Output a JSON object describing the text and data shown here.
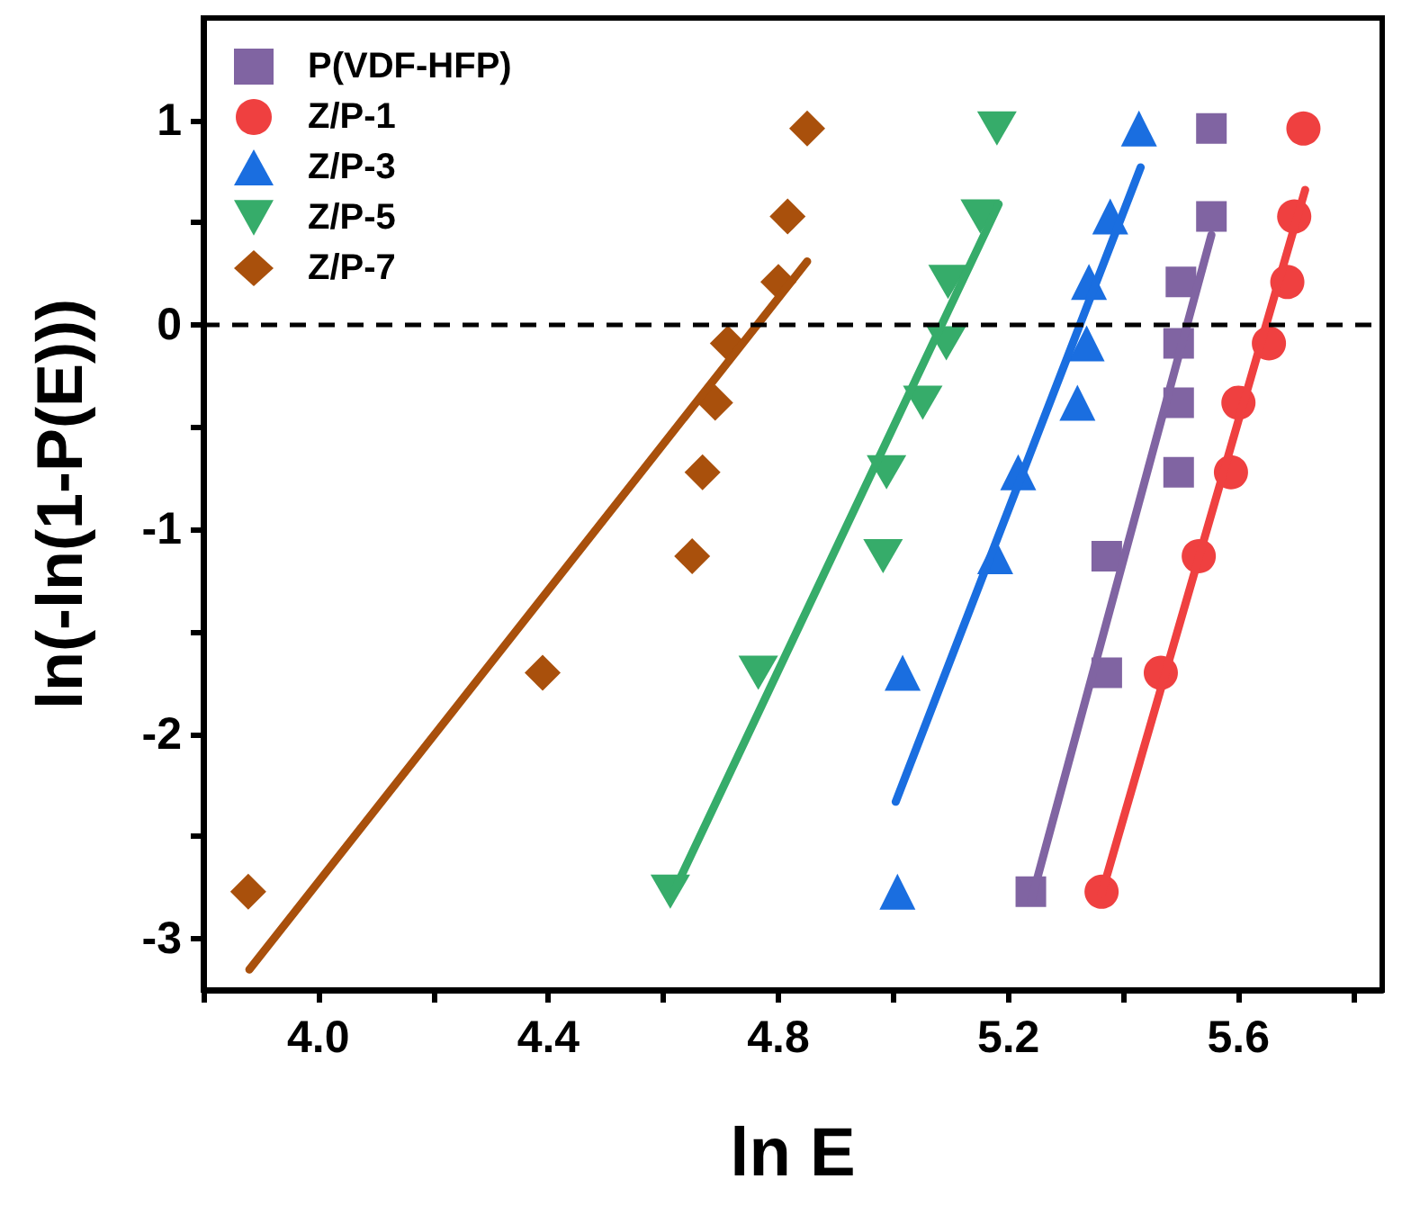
{
  "chart_data": {
    "type": "scatter",
    "xlabel": "ln E",
    "ylabel": "ln(-ln(1-P(E)))",
    "xlim": [
      3.8,
      5.85
    ],
    "xticks": [
      {
        "value": 3.8,
        "label": null
      },
      {
        "value": 4.0,
        "label": "4.0"
      },
      {
        "value": 4.2,
        "label": null
      },
      {
        "value": 4.4,
        "label": "4.4"
      },
      {
        "value": 4.6,
        "label": null
      },
      {
        "value": 4.8,
        "label": "4.8"
      },
      {
        "value": 5.0,
        "label": null
      },
      {
        "value": 5.2,
        "label": "5.2"
      },
      {
        "value": 5.4,
        "label": null
      },
      {
        "value": 5.6,
        "label": "5.6"
      },
      {
        "value": 5.8,
        "label": null
      }
    ],
    "ylim": [
      -3.25,
      1.5
    ],
    "yticks": [
      -3,
      {
        "value": -2.5,
        "label": null
      },
      -2,
      {
        "value": -1.5,
        "label": null
      },
      -1,
      {
        "value": -0.5,
        "label": null
      },
      0,
      {
        "value": 0.5,
        "label": null
      },
      1
    ],
    "legend": "top left",
    "grid": false,
    "ref_lines": [
      {
        "axis": "y",
        "value": 0,
        "color": "#000000",
        "line_style": "dashed"
      }
    ],
    "series": [
      {
        "name": "P(VDF-HFP)",
        "marker": "square",
        "color": "#8064a2",
        "x": [
          5.553,
          5.553,
          5.5,
          5.496,
          5.496,
          5.496,
          5.371,
          5.371,
          5.239
        ],
        "values": [
          0.96,
          0.53,
          0.21,
          -0.09,
          -0.38,
          -0.72,
          -1.13,
          -1.7,
          -2.77
        ]
      },
      {
        "name": "Z/P-1",
        "marker": "circle",
        "color": "#ef4040",
        "x": [
          5.713,
          5.697,
          5.685,
          5.653,
          5.6,
          5.587,
          5.531,
          5.465,
          5.362
        ],
        "values": [
          0.96,
          0.53,
          0.21,
          -0.09,
          -0.38,
          -0.72,
          -1.13,
          -1.7,
          -2.77
        ]
      },
      {
        "name": "Z/P-3",
        "marker": "triangle",
        "color": "#1a6ee0",
        "x": [
          5.427,
          5.377,
          5.34,
          5.336,
          5.32,
          5.217,
          5.177,
          5.016,
          5.007
        ],
        "values": [
          0.96,
          0.53,
          0.21,
          -0.09,
          -0.38,
          -0.72,
          -1.13,
          -1.7,
          -2.77
        ]
      },
      {
        "name": "Z/P-5",
        "marker": "triangle-down",
        "color": "#36ac6a",
        "x": [
          5.18,
          5.151,
          5.095,
          5.092,
          5.051,
          4.988,
          4.982,
          4.765,
          4.612
        ],
        "values": [
          0.96,
          0.53,
          0.21,
          -0.09,
          -0.38,
          -0.72,
          -1.13,
          -1.7,
          -2.77
        ]
      },
      {
        "name": "Z/P-7",
        "marker": "diamond",
        "color": "#a9500c",
        "x": [
          4.85,
          4.816,
          4.8,
          4.712,
          4.69,
          4.668,
          4.65,
          4.39,
          3.878
        ],
        "values": [
          0.96,
          0.53,
          0.21,
          -0.09,
          -0.38,
          -0.72,
          -1.13,
          -1.7,
          -2.77
        ]
      },
      {
        "type": "line",
        "color": "#8064a2",
        "x": [
          5.239,
          5.553
        ],
        "values": [
          -2.82,
          0.44
        ]
      },
      {
        "type": "line",
        "color": "#ef4040",
        "x": [
          5.362,
          5.716
        ],
        "values": [
          -2.78,
          0.66
        ]
      },
      {
        "type": "line",
        "color": "#1a6ee0",
        "x": [
          5.004,
          5.43
        ],
        "values": [
          -2.33,
          0.77
        ]
      },
      {
        "type": "line",
        "color": "#36ac6a",
        "x": [
          4.618,
          5.183
        ],
        "values": [
          -2.77,
          0.59
        ]
      },
      {
        "type": "line",
        "color": "#a9500c",
        "x": [
          3.88,
          4.85
        ],
        "values": [
          -3.15,
          0.31
        ]
      }
    ]
  }
}
